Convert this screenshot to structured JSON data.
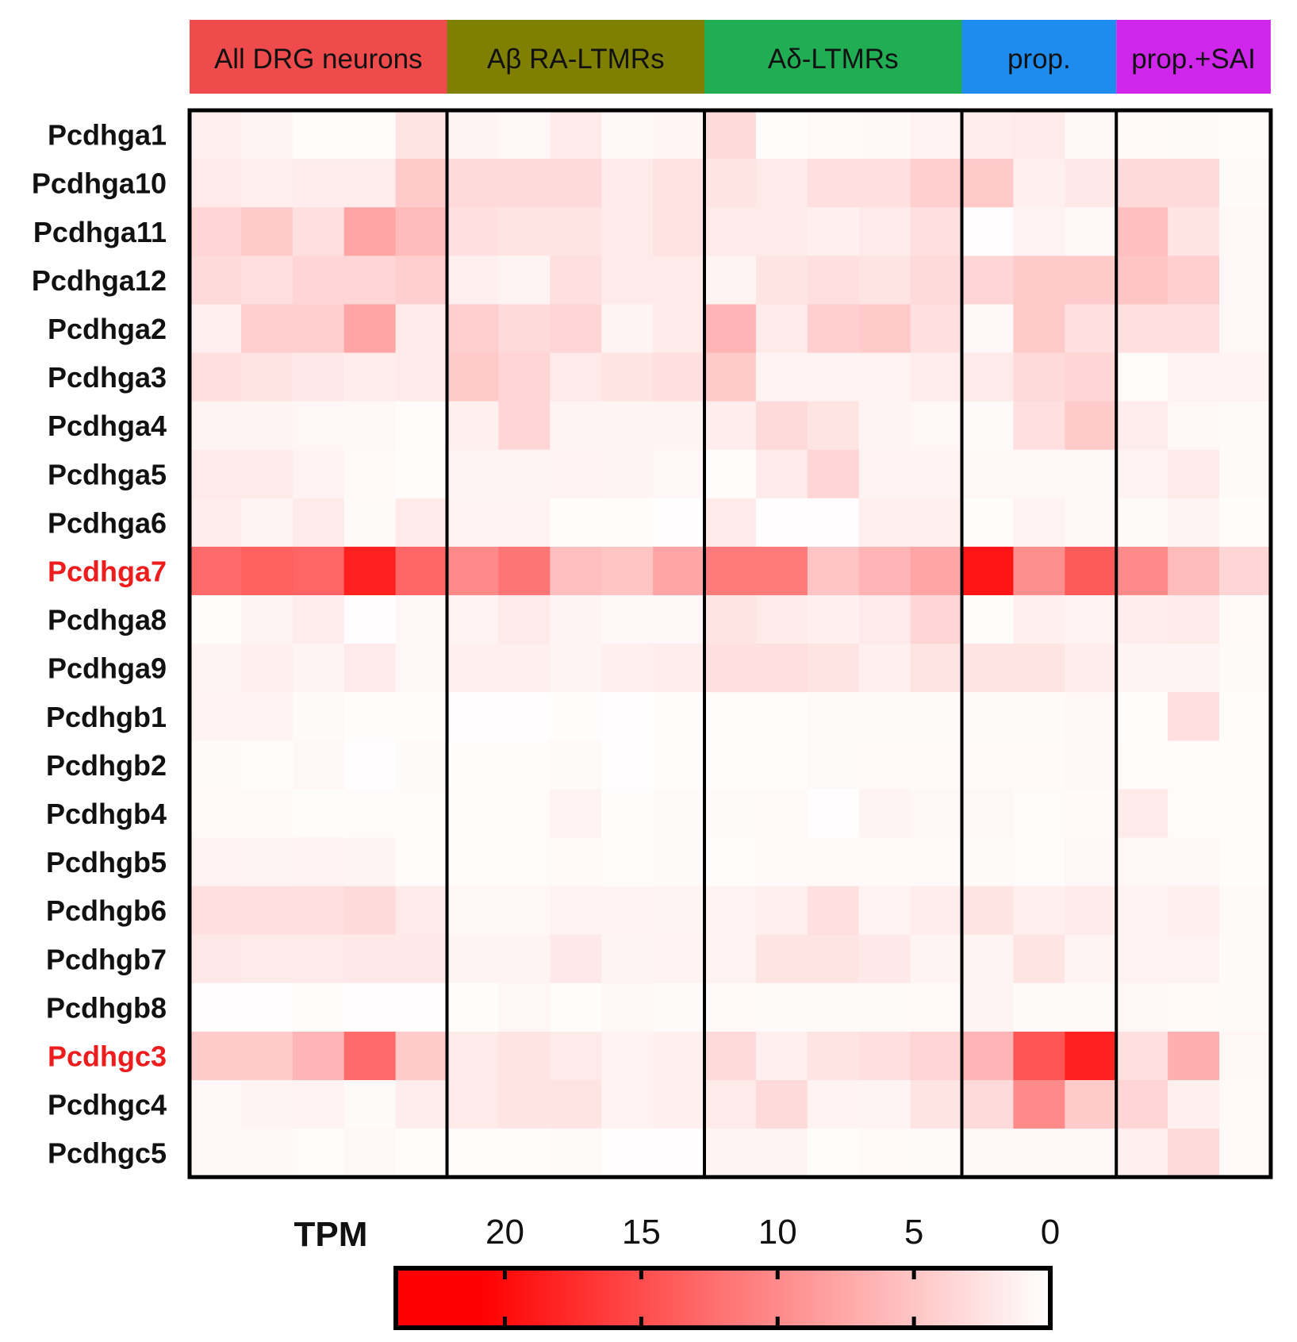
{
  "chart_data": {
    "type": "heatmap",
    "groups": [
      {
        "label": "All DRG neurons",
        "color": "#ef4a4c",
        "columns": 5
      },
      {
        "label": "Aβ RA-LTMRs",
        "color": "#808000",
        "columns": 5
      },
      {
        "label": "Aδ-LTMRs",
        "color": "#21ad54",
        "columns": 5
      },
      {
        "label": "prop.",
        "color": "#1e8cef",
        "columns": 3
      },
      {
        "label": "prop.+SAI",
        "color": "#d026ec",
        "columns": 3
      }
    ],
    "rows": [
      {
        "label": "Pcdhga1",
        "highlight": false,
        "values": [
          1.5,
          1.0,
          0.3,
          0.4,
          2.5,
          1.0,
          0.8,
          2.0,
          0.7,
          0.9,
          3.5,
          0.3,
          0.6,
          0.7,
          1.2,
          1.8,
          2.0,
          0.8,
          0.6,
          0.5,
          0.3
        ]
      },
      {
        "label": "Pcdhga10",
        "highlight": false,
        "values": [
          2.0,
          1.5,
          1.8,
          1.8,
          5.0,
          3.5,
          3.5,
          3.5,
          2.0,
          2.8,
          2.5,
          2.0,
          3.0,
          3.0,
          4.5,
          5.0,
          1.5,
          2.2,
          3.5,
          3.5,
          0.5
        ]
      },
      {
        "label": "Pcdhga11",
        "highlight": false,
        "values": [
          4.0,
          5.0,
          3.0,
          8.5,
          6.5,
          3.0,
          2.5,
          2.5,
          2.0,
          2.8,
          2.0,
          2.0,
          1.5,
          2.0,
          3.0,
          0.2,
          1.2,
          0.8,
          6.0,
          2.5,
          0.8
        ]
      },
      {
        "label": "Pcdhga12",
        "highlight": false,
        "values": [
          3.5,
          3.0,
          4.0,
          4.0,
          4.5,
          1.5,
          1.0,
          3.0,
          2.0,
          2.0,
          1.0,
          2.5,
          3.0,
          2.5,
          3.5,
          4.0,
          5.0,
          5.0,
          5.5,
          4.5,
          0.8
        ]
      },
      {
        "label": "Pcdhga2",
        "highlight": false,
        "values": [
          1.5,
          4.5,
          4.5,
          8.5,
          2.0,
          4.5,
          3.5,
          4.0,
          1.0,
          2.0,
          7.0,
          2.0,
          4.5,
          5.0,
          3.0,
          0.8,
          5.0,
          3.0,
          3.0,
          3.0,
          0.8
        ]
      },
      {
        "label": "Pcdhga3",
        "highlight": false,
        "values": [
          3.0,
          2.5,
          2.2,
          1.8,
          2.0,
          5.0,
          4.0,
          2.0,
          2.5,
          3.0,
          5.0,
          1.2,
          1.2,
          1.2,
          1.8,
          2.0,
          3.5,
          4.0,
          0.4,
          1.2,
          1.2
        ]
      },
      {
        "label": "Pcdhga4",
        "highlight": false,
        "values": [
          1.0,
          1.0,
          0.8,
          0.8,
          0.4,
          1.5,
          4.0,
          1.0,
          1.0,
          1.0,
          1.8,
          3.5,
          2.5,
          1.0,
          0.8,
          0.5,
          3.0,
          5.0,
          1.8,
          0.8,
          0.5
        ]
      },
      {
        "label": "Pcdhga5",
        "highlight": false,
        "values": [
          2.0,
          2.0,
          1.2,
          0.6,
          0.3,
          1.0,
          1.0,
          1.2,
          1.0,
          0.8,
          0.3,
          2.0,
          4.0,
          1.2,
          1.2,
          0.8,
          0.8,
          0.7,
          1.2,
          2.0,
          0.5
        ]
      },
      {
        "label": "Pcdhga6",
        "highlight": false,
        "values": [
          1.8,
          1.0,
          2.0,
          0.5,
          2.0,
          1.2,
          1.2,
          0.3,
          0.3,
          0.2,
          2.0,
          0.2,
          0.2,
          1.5,
          1.5,
          0.3,
          1.2,
          0.8,
          0.5,
          1.0,
          0.3
        ]
      },
      {
        "label": "Pcdhga7",
        "highlight": true,
        "values": [
          14.0,
          15.0,
          14.5,
          21.0,
          14.5,
          11.0,
          13.0,
          6.0,
          5.5,
          8.5,
          12.5,
          12.5,
          5.5,
          7.0,
          8.5,
          22.0,
          10.5,
          15.5,
          11.0,
          6.5,
          4.0
        ]
      },
      {
        "label": "Pcdhga8",
        "highlight": false,
        "values": [
          0.3,
          1.0,
          1.8,
          0.2,
          0.8,
          1.2,
          2.0,
          1.0,
          0.8,
          0.8,
          2.5,
          2.0,
          1.5,
          2.0,
          4.0,
          0.3,
          1.5,
          1.2,
          1.8,
          2.0,
          0.6
        ]
      },
      {
        "label": "Pcdhga9",
        "highlight": false,
        "values": [
          1.0,
          1.5,
          1.0,
          2.0,
          0.8,
          1.5,
          1.5,
          1.0,
          1.5,
          1.8,
          3.0,
          3.0,
          2.5,
          1.5,
          2.5,
          2.5,
          2.5,
          1.8,
          1.0,
          1.0,
          0.5
        ]
      },
      {
        "label": "Pcdhgb1",
        "highlight": false,
        "values": [
          1.2,
          1.2,
          0.5,
          0.3,
          0.3,
          0.2,
          0.2,
          0.3,
          0.2,
          0.3,
          0.3,
          0.3,
          0.5,
          0.5,
          0.5,
          0.5,
          0.5,
          0.8,
          0.3,
          3.0,
          0.3
        ]
      },
      {
        "label": "Pcdhgb2",
        "highlight": false,
        "values": [
          0.5,
          0.3,
          0.8,
          0.2,
          0.5,
          0.3,
          0.3,
          0.5,
          0.2,
          0.3,
          0.3,
          0.3,
          0.5,
          0.6,
          0.6,
          0.6,
          0.6,
          0.8,
          0.4,
          0.4,
          0.3
        ]
      },
      {
        "label": "Pcdhgb4",
        "highlight": false,
        "values": [
          0.6,
          0.6,
          0.3,
          0.4,
          0.4,
          0.4,
          0.4,
          1.2,
          0.3,
          0.5,
          0.5,
          0.6,
          0.2,
          1.0,
          0.8,
          0.8,
          0.4,
          0.6,
          2.0,
          0.4,
          0.3
        ]
      },
      {
        "label": "Pcdhgb5",
        "highlight": false,
        "values": [
          1.2,
          1.0,
          1.2,
          1.0,
          0.4,
          0.4,
          0.4,
          0.6,
          0.4,
          0.5,
          0.3,
          0.6,
          0.6,
          0.6,
          0.6,
          0.5,
          0.4,
          0.8,
          0.8,
          0.8,
          0.3
        ]
      },
      {
        "label": "Pcdhgb6",
        "highlight": false,
        "values": [
          3.0,
          3.0,
          3.0,
          3.5,
          2.0,
          0.8,
          0.8,
          1.2,
          1.2,
          1.0,
          1.2,
          1.5,
          3.0,
          1.2,
          1.8,
          2.5,
          1.5,
          2.0,
          1.2,
          1.5,
          0.5
        ]
      },
      {
        "label": "Pcdhgb7",
        "highlight": false,
        "values": [
          2.2,
          2.0,
          2.0,
          2.2,
          2.2,
          1.0,
          1.0,
          2.2,
          1.0,
          1.2,
          1.2,
          2.5,
          2.5,
          2.2,
          1.0,
          1.0,
          2.5,
          1.0,
          1.2,
          1.2,
          0.5
        ]
      },
      {
        "label": "Pcdhgb8",
        "highlight": false,
        "values": [
          0.2,
          0.2,
          0.3,
          0.2,
          0.2,
          0.3,
          0.8,
          0.3,
          0.8,
          0.5,
          0.6,
          0.5,
          0.5,
          0.5,
          0.6,
          1.0,
          0.5,
          0.5,
          0.8,
          0.6,
          0.5
        ]
      },
      {
        "label": "Pcdhgc3",
        "highlight": true,
        "values": [
          5.0,
          5.0,
          7.0,
          14.0,
          5.0,
          2.0,
          2.5,
          2.0,
          1.2,
          1.5,
          3.5,
          1.5,
          2.5,
          3.0,
          4.0,
          7.0,
          16.0,
          21.0,
          3.0,
          7.5,
          0.8
        ]
      },
      {
        "label": "Pcdhgc4",
        "highlight": false,
        "values": [
          0.8,
          1.0,
          1.2,
          0.5,
          1.8,
          2.0,
          2.5,
          2.5,
          1.2,
          1.5,
          2.0,
          3.5,
          1.2,
          1.0,
          2.5,
          3.5,
          11.0,
          5.0,
          4.0,
          1.5,
          0.6
        ]
      },
      {
        "label": "Pcdhgc5",
        "highlight": false,
        "values": [
          0.8,
          0.8,
          0.4,
          0.8,
          0.4,
          0.3,
          0.3,
          0.5,
          0.2,
          0.2,
          1.0,
          1.0,
          0.3,
          0.6,
          0.5,
          0.8,
          0.8,
          0.8,
          1.5,
          3.5,
          0.6
        ]
      }
    ],
    "colorbar": {
      "title": "TPM",
      "ticks": [
        20,
        15,
        10,
        5,
        0
      ],
      "range": [
        0,
        24
      ],
      "low_color": "#ffffff",
      "high_color": "#ff0000"
    },
    "highlight_color": "#ee1c1c",
    "label_color": "#111111"
  }
}
